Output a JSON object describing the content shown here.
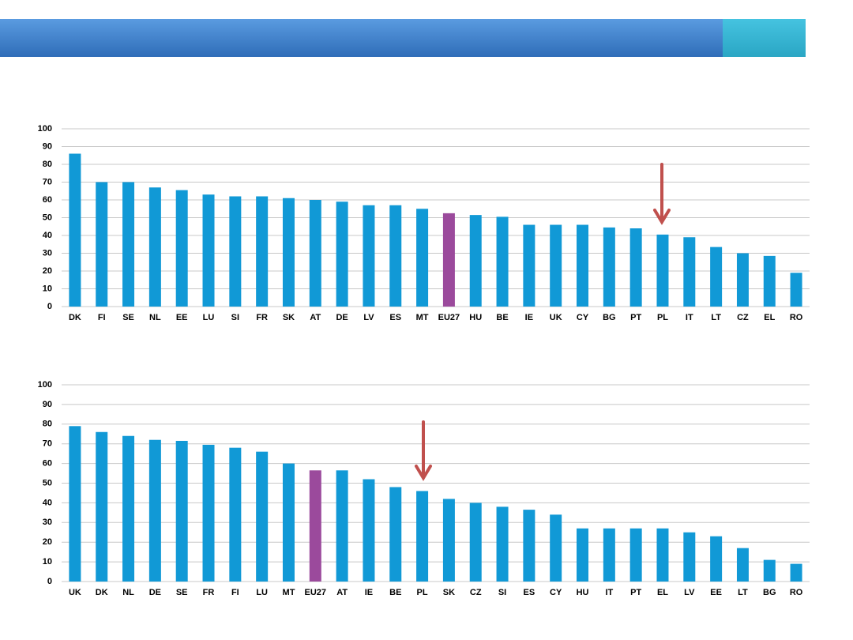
{
  "chart_data": [
    {
      "type": "bar",
      "categories": [
        "DK",
        "FI",
        "SE",
        "NL",
        "EE",
        "LU",
        "SI",
        "FR",
        "SK",
        "AT",
        "DE",
        "LV",
        "ES",
        "MT",
        "EU27",
        "HU",
        "BE",
        "IE",
        "UK",
        "CY",
        "BG",
        "PT",
        "PL",
        "IT",
        "LT",
        "CZ",
        "EL",
        "RO"
      ],
      "values": [
        86,
        70,
        70,
        67,
        65.5,
        63,
        62,
        62,
        61,
        60,
        59,
        57,
        57,
        55,
        52.5,
        51.5,
        50.5,
        46,
        46,
        46,
        44.5,
        44,
        40.5,
        39,
        33.5,
        30,
        28.5,
        19
      ],
      "colors": [
        "#1199d6",
        "#1199d6",
        "#1199d6",
        "#1199d6",
        "#1199d6",
        "#1199d6",
        "#1199d6",
        "#1199d6",
        "#1199d6",
        "#1199d6",
        "#1199d6",
        "#1199d6",
        "#1199d6",
        "#1199d6",
        "#9b4a9c",
        "#1199d6",
        "#1199d6",
        "#1199d6",
        "#1199d6",
        "#1199d6",
        "#1199d6",
        "#1199d6",
        "#1199d6",
        "#1199d6",
        "#1199d6",
        "#1199d6",
        "#1199d6",
        "#1199d6"
      ],
      "ylim": [
        0,
        100
      ],
      "yticks": [
        0,
        10,
        20,
        30,
        40,
        50,
        60,
        70,
        80,
        90,
        100
      ],
      "grid": true
    },
    {
      "type": "bar",
      "categories": [
        "UK",
        "DK",
        "NL",
        "DE",
        "SE",
        "FR",
        "FI",
        "LU",
        "MT",
        "EU27",
        "AT",
        "IE",
        "BE",
        "PL",
        "SK",
        "CZ",
        "SI",
        "ES",
        "CY",
        "HU",
        "IT",
        "PT",
        "EL",
        "LV",
        "EE",
        "LT",
        "BG",
        "RO"
      ],
      "values": [
        79,
        76,
        74,
        72,
        71.5,
        69.5,
        68,
        66,
        60,
        56.5,
        56.5,
        52,
        48,
        46,
        42,
        40,
        38,
        36.5,
        34,
        27,
        27,
        27,
        27,
        25,
        23,
        17,
        11,
        9
      ],
      "colors": [
        "#1199d6",
        "#1199d6",
        "#1199d6",
        "#1199d6",
        "#1199d6",
        "#1199d6",
        "#1199d6",
        "#1199d6",
        "#1199d6",
        "#9b4a9c",
        "#1199d6",
        "#1199d6",
        "#1199d6",
        "#1199d6",
        "#1199d6",
        "#1199d6",
        "#1199d6",
        "#1199d6",
        "#1199d6",
        "#1199d6",
        "#1199d6",
        "#1199d6",
        "#1199d6",
        "#1199d6",
        "#1199d6",
        "#1199d6",
        "#1199d6",
        "#1199d6"
      ],
      "ylim": [
        0,
        100
      ],
      "yticks": [
        0,
        10,
        20,
        30,
        40,
        50,
        60,
        70,
        80,
        90,
        100
      ],
      "grid": true
    }
  ]
}
